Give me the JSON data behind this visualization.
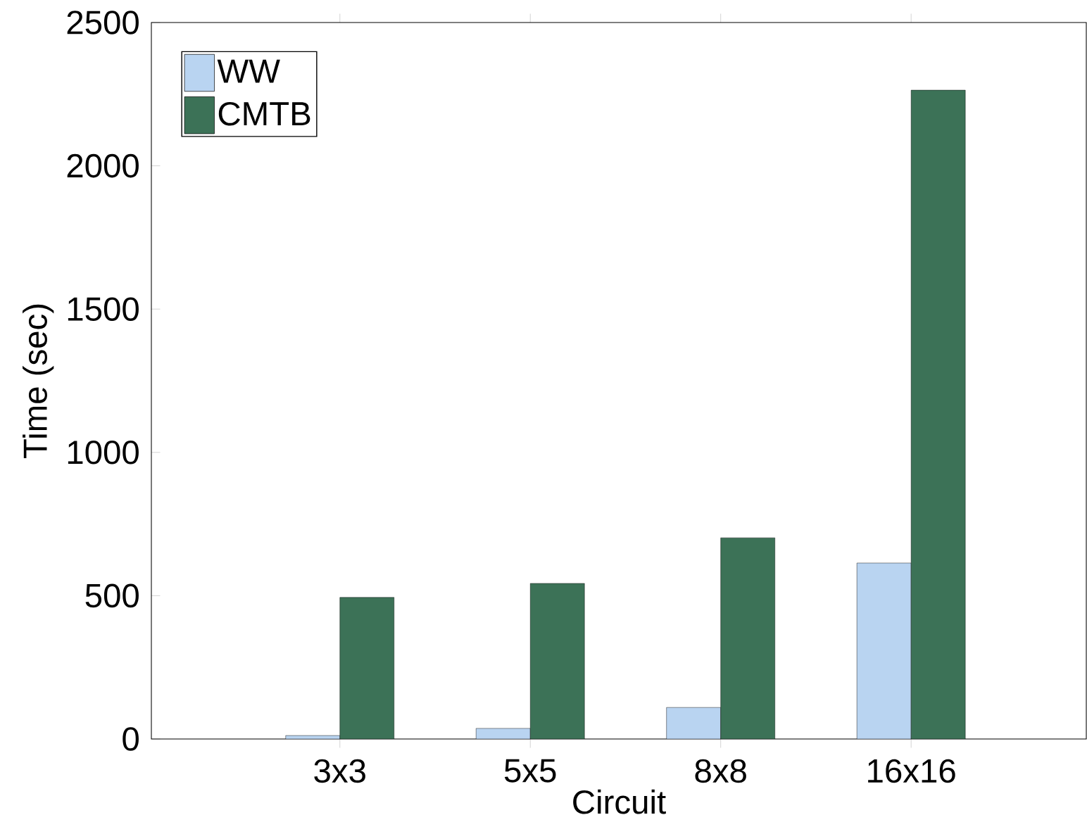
{
  "chart_data": {
    "type": "bar",
    "xlabel": "Circuit",
    "ylabel": "Time (sec)",
    "categories": [
      "3x3",
      "5x5",
      "8x8",
      "16x16"
    ],
    "series": [
      {
        "name": "WW",
        "color": "#b9d4f1",
        "values": [
          12,
          37,
          110,
          614
        ]
      },
      {
        "name": "CMTB",
        "color": "#3c7257",
        "values": [
          494,
          543,
          702,
          2264
        ]
      }
    ],
    "ylim": [
      0,
      2500
    ],
    "yticks": [
      0,
      500,
      1000,
      1500,
      2000,
      2500
    ],
    "legend": "top left",
    "grid": false
  }
}
